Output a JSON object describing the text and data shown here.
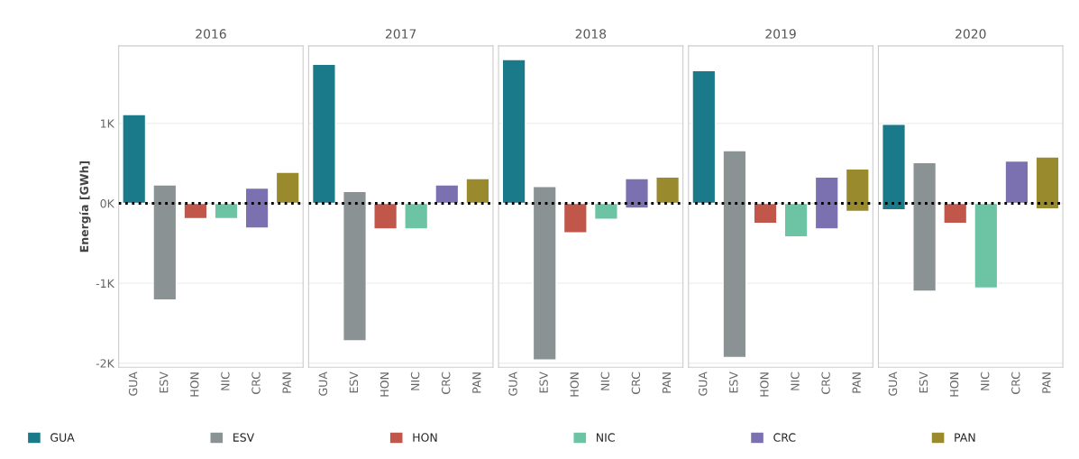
{
  "chart_data": [
    {
      "type": "bar",
      "title": "2016",
      "ylabel": "Energía [GWh]",
      "categories": [
        "GUA",
        "ESV",
        "HON",
        "NIC",
        "CRC",
        "PAN"
      ],
      "series": [
        {
          "name": "GUA",
          "color": "#1a7a8a",
          "values": [
            1110,
            null,
            null,
            null,
            null,
            null
          ],
          "base": [
            0,
            null,
            null,
            null,
            null,
            null
          ]
        },
        {
          "name": "ESV",
          "color": "#8a9294",
          "values": [
            null,
            1440,
            null,
            null,
            null,
            null
          ],
          "base": [
            null,
            -1210,
            null,
            null,
            null,
            null
          ]
        },
        {
          "name": "HON",
          "color": "#c0574a",
          "values": [
            null,
            null,
            190,
            null,
            null,
            null
          ],
          "base": [
            null,
            null,
            -190,
            null,
            null,
            null
          ]
        },
        {
          "name": "NIC",
          "color": "#6cc4a4",
          "values": [
            null,
            null,
            null,
            190,
            null,
            null
          ],
          "base": [
            null,
            null,
            null,
            -190,
            null,
            null
          ]
        },
        {
          "name": "CRC",
          "color": "#7b71b0",
          "values": [
            null,
            null,
            null,
            null,
            500,
            null
          ],
          "base": [
            null,
            null,
            null,
            null,
            -310,
            null
          ]
        },
        {
          "name": "PAN",
          "color": "#9a8a2e",
          "values": [
            null,
            null,
            null,
            null,
            null,
            390
          ],
          "base": [
            null,
            null,
            null,
            null,
            null,
            0
          ]
        }
      ],
      "ylim": [
        -2050,
        1970
      ],
      "yticks": [
        {
          "value": -2000,
          "label": "-2K"
        },
        {
          "value": -1000,
          "label": "-1K"
        },
        {
          "value": 0,
          "label": "0K"
        },
        {
          "value": 1000,
          "label": "1K"
        }
      ],
      "grid": "y",
      "legend": "bottom",
      "ref_lines": [
        {
          "axis": "y",
          "value": 0,
          "color": "#000000",
          "line_style": "dotted"
        }
      ]
    },
    {
      "type": "bar",
      "title": "2017",
      "categories": [
        "GUA",
        "ESV",
        "HON",
        "NIC",
        "CRC",
        "PAN"
      ],
      "series": [
        {
          "color": "#1a7a8a",
          "values": [
            1740,
            null,
            null,
            null,
            null,
            null
          ],
          "base": [
            0,
            null,
            null,
            null,
            null,
            null
          ]
        },
        {
          "color": "#8a9294",
          "values": [
            null,
            1870,
            null,
            null,
            null,
            null
          ],
          "base": [
            null,
            -1720,
            null,
            null,
            null,
            null
          ]
        },
        {
          "color": "#c0574a",
          "values": [
            null,
            null,
            320,
            null,
            null,
            null
          ],
          "base": [
            null,
            null,
            -320,
            null,
            null,
            null
          ]
        },
        {
          "color": "#6cc4a4",
          "values": [
            null,
            null,
            null,
            320,
            null,
            null
          ],
          "base": [
            null,
            null,
            null,
            -320,
            null,
            null
          ]
        },
        {
          "color": "#7b71b0",
          "values": [
            null,
            null,
            null,
            null,
            230,
            null
          ],
          "base": [
            null,
            null,
            null,
            null,
            0,
            null
          ]
        },
        {
          "color": "#9a8a2e",
          "values": [
            null,
            null,
            null,
            null,
            null,
            310
          ],
          "base": [
            null,
            null,
            null,
            null,
            null,
            0
          ]
        }
      ],
      "ylim": [
        -2050,
        1970
      ],
      "tick_labels": "x",
      "grid": "y",
      "ref_lines": [
        {
          "axis": "y",
          "value": 0,
          "color": "#000000",
          "line_style": "dotted"
        }
      ]
    },
    {
      "type": "bar",
      "title": "2018",
      "categories": [
        "GUA",
        "ESV",
        "HON",
        "NIC",
        "CRC",
        "PAN"
      ],
      "series": [
        {
          "color": "#1a7a8a",
          "values": [
            1800,
            null,
            null,
            null,
            null,
            null
          ],
          "base": [
            0,
            null,
            null,
            null,
            null,
            null
          ]
        },
        {
          "color": "#8a9294",
          "values": [
            null,
            2170,
            null,
            null,
            null,
            null
          ],
          "base": [
            null,
            -1960,
            null,
            null,
            null,
            null
          ]
        },
        {
          "color": "#c0574a",
          "values": [
            null,
            null,
            370,
            null,
            null,
            null
          ],
          "base": [
            null,
            null,
            -370,
            null,
            null,
            null
          ]
        },
        {
          "color": "#6cc4a4",
          "values": [
            null,
            null,
            null,
            200,
            null,
            null
          ],
          "base": [
            null,
            null,
            null,
            -200,
            null,
            null
          ]
        },
        {
          "color": "#7b71b0",
          "values": [
            null,
            null,
            null,
            null,
            370,
            null
          ],
          "base": [
            null,
            null,
            null,
            null,
            -60,
            null
          ]
        },
        {
          "color": "#9a8a2e",
          "values": [
            null,
            null,
            null,
            null,
            null,
            330
          ],
          "base": [
            null,
            null,
            null,
            null,
            null,
            0
          ]
        }
      ],
      "ylim": [
        -2050,
        1970
      ],
      "tick_labels": "x",
      "grid": "y",
      "ref_lines": [
        {
          "axis": "y",
          "value": 0,
          "color": "#000000",
          "line_style": "dotted"
        }
      ]
    },
    {
      "type": "bar",
      "title": "2019",
      "categories": [
        "GUA",
        "ESV",
        "HON",
        "NIC",
        "CRC",
        "PAN"
      ],
      "series": [
        {
          "color": "#1a7a8a",
          "values": [
            1660,
            null,
            null,
            null,
            null,
            null
          ],
          "base": [
            0,
            null,
            null,
            null,
            null,
            null
          ]
        },
        {
          "color": "#8a9294",
          "values": [
            null,
            2590,
            null,
            null,
            null,
            null
          ],
          "base": [
            null,
            -1930,
            null,
            null,
            null,
            null
          ]
        },
        {
          "color": "#c0574a",
          "values": [
            null,
            null,
            250,
            null,
            null,
            null
          ],
          "base": [
            null,
            null,
            -250,
            null,
            null,
            null
          ]
        },
        {
          "color": "#6cc4a4",
          "values": [
            null,
            null,
            null,
            420,
            null,
            null
          ],
          "base": [
            null,
            null,
            null,
            -420,
            null,
            null
          ]
        },
        {
          "color": "#7b71b0",
          "values": [
            null,
            null,
            null,
            null,
            650,
            null
          ],
          "base": [
            null,
            null,
            null,
            null,
            -320,
            null
          ]
        },
        {
          "color": "#9a8a2e",
          "values": [
            null,
            null,
            null,
            null,
            null,
            530
          ],
          "base": [
            null,
            null,
            null,
            null,
            null,
            -100
          ]
        }
      ],
      "ylim": [
        -2050,
        1970
      ],
      "tick_labels": "x",
      "grid": "y",
      "ref_lines": [
        {
          "axis": "y",
          "value": 0,
          "color": "#000000",
          "line_style": "dotted"
        }
      ]
    },
    {
      "type": "bar",
      "title": "2020",
      "categories": [
        "GUA",
        "ESV",
        "HON",
        "NIC",
        "CRC",
        "PAN"
      ],
      "series": [
        {
          "color": "#1a7a8a",
          "values": [
            1070,
            null,
            null,
            null,
            null,
            null
          ],
          "base": [
            -80,
            null,
            null,
            null,
            null,
            null
          ]
        },
        {
          "color": "#8a9294",
          "values": [
            null,
            1610,
            null,
            null,
            null,
            null
          ],
          "base": [
            null,
            -1100,
            null,
            null,
            null,
            null
          ]
        },
        {
          "color": "#c0574a",
          "values": [
            null,
            null,
            250,
            null,
            null,
            null
          ],
          "base": [
            null,
            null,
            -250,
            null,
            null,
            null
          ]
        },
        {
          "color": "#6cc4a4",
          "values": [
            null,
            null,
            null,
            1060,
            null,
            null
          ],
          "base": [
            null,
            null,
            null,
            -1060,
            null,
            null
          ]
        },
        {
          "color": "#7b71b0",
          "values": [
            null,
            null,
            null,
            null,
            530,
            null
          ],
          "base": [
            null,
            null,
            null,
            null,
            0,
            null
          ]
        },
        {
          "color": "#9a8a2e",
          "values": [
            null,
            null,
            null,
            null,
            null,
            650
          ],
          "base": [
            null,
            null,
            null,
            null,
            null,
            -70
          ]
        }
      ],
      "ylim": [
        -2050,
        1970
      ],
      "tick_labels": "x",
      "grid": "y",
      "ref_lines": [
        {
          "axis": "y",
          "value": 0,
          "color": "#000000",
          "line_style": "dotted"
        }
      ]
    }
  ]
}
